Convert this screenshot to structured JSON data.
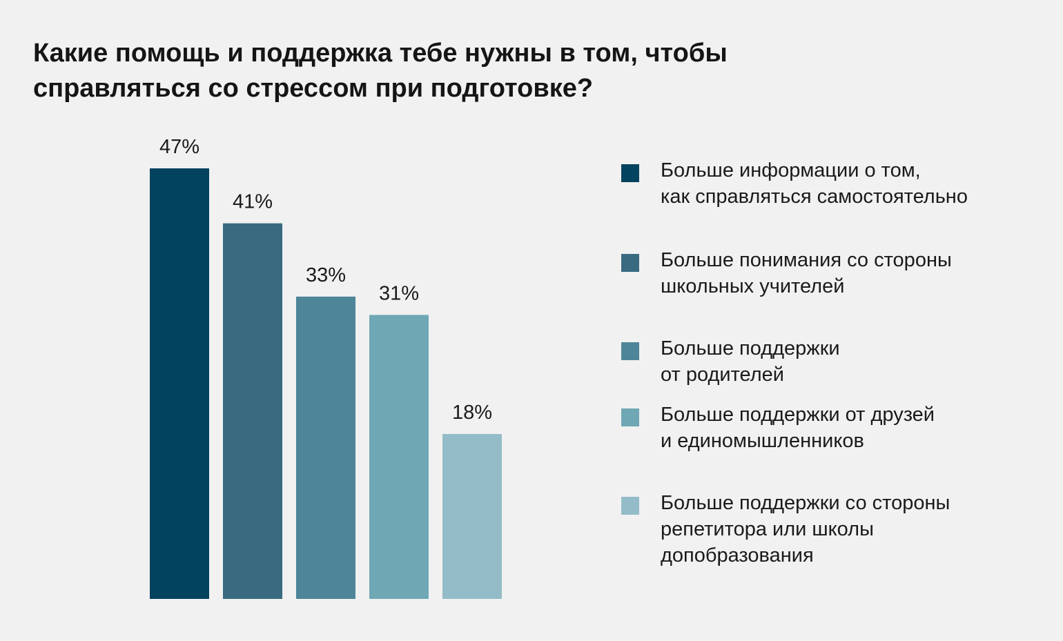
{
  "title_lines": [
    "Какие помощь и поддержка тебе нужны в том, чтобы",
    "справляться со стрессом при подготовке?"
  ],
  "chart_data": {
    "type": "bar",
    "title": "Какие помощь и поддержка тебе нужны в том, чтобы справляться со стрессом при подготовке?",
    "categories": [
      "Больше информации о том, как справляться самостоятельно",
      "Больше понимания со стороны школьных учителей",
      "Больше поддержки от родителей",
      "Больше поддержки от друзей и единомышленников",
      "Больше поддержки со стороны репетитора или школы допобразования"
    ],
    "values": [
      47,
      41,
      33,
      31,
      18
    ],
    "value_labels": [
      "47%",
      "41%",
      "33%",
      "31%",
      "18%"
    ],
    "colors": [
      "#02435f",
      "#396a80",
      "#4e8598",
      "#6fa7b5",
      "#93bcc8"
    ],
    "unit": "%",
    "ylim": [
      0,
      47
    ],
    "grid": false,
    "legend_position": "right",
    "legend": [
      {
        "lines": [
          "Больше информации о том,",
          "как справляться самостоятельно"
        ]
      },
      {
        "lines": [
          "Больше понимания со стороны",
          "школьных учителей"
        ]
      },
      {
        "lines": [
          "Больше поддержки",
          "от родителей"
        ]
      },
      {
        "lines": [
          "Больше поддержки от друзей",
          "и единомышленников"
        ]
      },
      {
        "lines": [
          "Больше поддержки со стороны",
          "репетитора или школы",
          "допобразования"
        ]
      }
    ]
  }
}
